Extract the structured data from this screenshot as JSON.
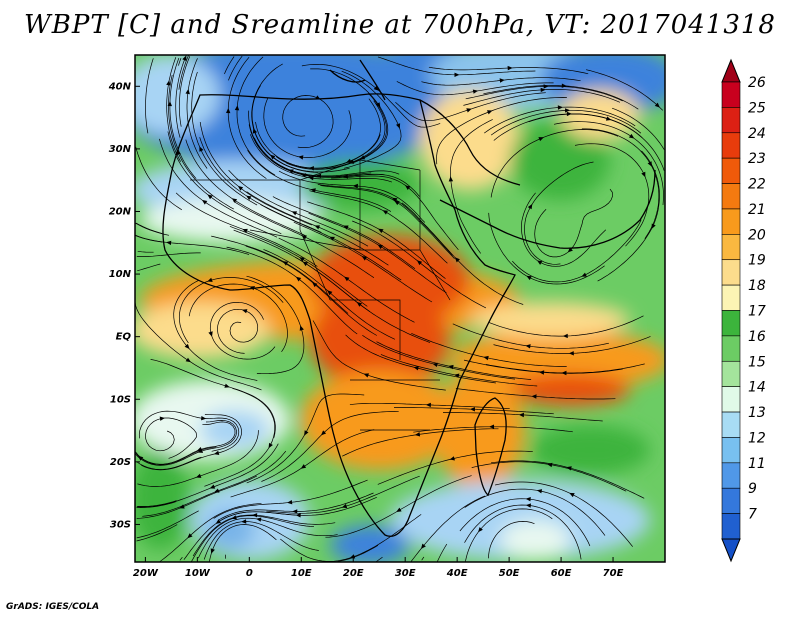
{
  "title": "WBPT [C] and Sreamline at 700hPa, VT: 2017041318",
  "credit": "GrADS: IGES/COLA",
  "lat_labels": [
    "40N",
    "30N",
    "20N",
    "10N",
    "EQ",
    "10S",
    "20S",
    "30S"
  ],
  "lat_values": [
    40,
    30,
    20,
    10,
    0,
    -10,
    -20,
    -30
  ],
  "lon_labels": [
    "20W",
    "10W",
    "0",
    "10E",
    "20E",
    "30E",
    "40E",
    "50E",
    "60E",
    "70E"
  ],
  "lon_values": [
    -20,
    -10,
    0,
    10,
    20,
    30,
    40,
    50,
    60,
    70
  ],
  "extent": {
    "lon_min": -22,
    "lon_max": 80,
    "lat_min": -36,
    "lat_max": 45
  },
  "colorbar": {
    "labels": [
      "26",
      "25",
      "24",
      "23",
      "22",
      "21",
      "20",
      "19",
      "18",
      "17",
      "16",
      "15",
      "14",
      "13",
      "12",
      "11",
      "9",
      "7"
    ],
    "colors": [
      "#c8001e",
      "#dc2014",
      "#e83c0c",
      "#f05a0a",
      "#f47a10",
      "#f89a1c",
      "#fab840",
      "#fcdc8c",
      "#fcf4b4",
      "#3cb43c",
      "#6ccc64",
      "#a4e49c",
      "#e0fae8",
      "#a8dcf4",
      "#78c0f0",
      "#5098e8",
      "#3478dc",
      "#2060d0"
    ],
    "top_arrow_color": "#a00018",
    "bottom_arrow_color": "#1450c8"
  },
  "palette": {
    "cold_blue": "#3c82dc",
    "light_blue": "#a8d4f4",
    "pale": "#e8f8f0",
    "green": "#3cb43c",
    "light_green": "#8cd47c",
    "yellow": "#fcdc8c",
    "orange": "#f89a1c",
    "red_orange": "#e8500c"
  }
}
